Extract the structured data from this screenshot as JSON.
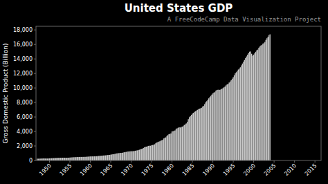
{
  "chart_data": {
    "type": "bar",
    "title": "United States GDP",
    "subtitle": "A FreeCodeCamp Data Visualization Project",
    "y_label": "Gross Domestic Product (Billion)",
    "color": "#c8c8c8",
    "grid": false,
    "x": [
      1947,
      1947.25,
      1947.5,
      1947.75,
      1948,
      1948.25,
      1948.5,
      1948.75,
      1949,
      1949.25,
      1949.5,
      1949.75,
      1950,
      1950.25,
      1950.5,
      1950.75,
      1951,
      1951.25,
      1951.5,
      1951.75,
      1952,
      1952.25,
      1952.5,
      1952.75,
      1953,
      1953.25,
      1953.5,
      1953.75,
      1954,
      1954.25,
      1954.5,
      1954.75,
      1955,
      1955.25,
      1955.5,
      1955.75,
      1956,
      1956.25,
      1956.5,
      1956.75,
      1957,
      1957.25,
      1957.5,
      1957.75,
      1958,
      1958.25,
      1958.5,
      1958.75,
      1959,
      1959.25,
      1959.5,
      1959.75,
      1960,
      1960.25,
      1960.5,
      1960.75,
      1961,
      1961.25,
      1961.5,
      1961.75,
      1962,
      1962.25,
      1962.5,
      1962.75,
      1963,
      1963.25,
      1963.5,
      1963.75,
      1964,
      1964.25,
      1964.5,
      1964.75,
      1965,
      1965.25,
      1965.5,
      1965.75,
      1966,
      1966.25,
      1966.5,
      1966.75,
      1967,
      1967.25,
      1967.5,
      1967.75,
      1968,
      1968.25,
      1968.5,
      1968.75,
      1969,
      1969.25,
      1969.5,
      1969.75,
      1970,
      1970.25,
      1970.5,
      1970.75,
      1971,
      1971.25,
      1971.5,
      1971.75,
      1972,
      1972.25,
      1972.5,
      1972.75,
      1973,
      1973.25,
      1973.5,
      1973.75,
      1974,
      1974.25,
      1974.5,
      1974.75,
      1975,
      1975.25,
      1975.5,
      1975.75,
      1976,
      1976.25,
      1976.5,
      1976.75,
      1977,
      1977.25,
      1977.5,
      1977.75,
      1978,
      1978.25,
      1978.5,
      1978.75,
      1979,
      1979.25,
      1979.5,
      1979.75,
      1980,
      1980.25,
      1980.5,
      1980.75,
      1981,
      1981.25,
      1981.5,
      1981.75,
      1982,
      1982.25,
      1982.5,
      1982.75,
      1983,
      1983.25,
      1983.5,
      1983.75,
      1984,
      1984.25,
      1984.5,
      1984.75,
      1985,
      1985.25,
      1985.5,
      1985.75,
      1986,
      1986.25,
      1986.5,
      1986.75,
      1987,
      1987.25,
      1987.5,
      1987.75,
      1988,
      1988.25,
      1988.5,
      1988.75,
      1989,
      1989.25,
      1989.5,
      1989.75,
      1990,
      1990.25,
      1990.5,
      1990.75,
      1991,
      1991.25,
      1991.5,
      1991.75,
      1992,
      1992.25,
      1992.5,
      1992.75,
      1993,
      1993.25,
      1993.5,
      1993.75,
      1994,
      1994.25,
      1994.5,
      1994.75,
      1995,
      1995.25,
      1995.5,
      1995.75,
      1996,
      1996.25,
      1996.5,
      1996.75,
      1997,
      1997.25,
      1997.5,
      1997.75,
      1998,
      1998.25,
      1998.5,
      1998.75,
      1999,
      1999.25,
      1999.5,
      1999.75,
      2000,
      2000.25,
      2000.5,
      2000.75,
      2001,
      2001.25,
      2001.5,
      2001.75,
      2002,
      2002.25,
      2002.5,
      2002.75,
      2003,
      2003.25,
      2003.5,
      2003.75,
      2004
    ],
    "values": [
      243.1,
      246.3,
      250.1,
      260.3,
      266.2,
      272.9,
      279.5,
      280.7,
      272.8,
      275.7,
      271.0,
      280.4,
      289.5,
      300.2,
      310.9,
      316.9,
      322.6,
      335.3,
      341.5,
      348.1,
      360.0,
      362.8,
      368.0,
      371.5,
      375.4,
      381.1,
      384.2,
      380.6,
      371.4,
      376.3,
      383.5,
      385.8,
      401.0,
      417.0,
      426.6,
      440.0,
      447.4,
      453.6,
      459.2,
      467.8,
      475.3,
      482.0,
      488.0,
      489.6,
      487.7,
      493.5,
      496.0,
      497.3,
      509.6,
      524.6,
      530.7,
      549.1,
      557.6,
      563.1,
      563.8,
      566.5,
      574.3,
      581.5,
      589.2,
      596.5,
      623.5,
      634.9,
      648.4,
      659.0,
      673.7,
      687.8,
      696.3,
      709.2,
      727.3,
      745.4,
      762.7,
      773.2,
      800.3,
      830.7,
      857.3,
      870.4,
      901.8,
      948.1,
      978.4,
      992.5,
      1017.0,
      1029.1,
      1040.8,
      1049.7,
      1082.8,
      1127.1,
      1151.8,
      1176.8,
      1215.3,
      1239.5,
      1246.2,
      1266.8,
      1271.3,
      1279.0,
      1286.2,
      1305.0,
      1340.1,
      1371.0,
      1393.7,
      1426.5,
      1481.8,
      1545.3,
      1588.1,
      1629.5,
      1720.3,
      1823.5,
      1881.1,
      1906.0,
      1959.3,
      2013.8,
      2033.6,
      2034.0,
      2097.5,
      2134.0,
      2162.5,
      2237.8,
      2361.9,
      2474.5,
      2523.0,
      2594.7,
      2640.0,
      2727.3,
      2784.1,
      2849.3,
      3038.6,
      3127.2,
      3192.8,
      3364.5,
      3516.3,
      3625.6,
      3671.8,
      3737.0,
      4000.2,
      4033.3,
      4085.0,
      4148.0,
      4347.5,
      4434.1,
      4509.4,
      4587.3,
      4545.6,
      4613.4,
      4653.3,
      4741.7,
      4895.5,
      4991.5,
      5113.7,
      5326.4,
      5694.3,
      5974.6,
      6112.0,
      6298.2,
      6465.0,
      6569.0,
      6700.6,
      6786.4,
      6888.9,
      6987.5,
      7079.6,
      7145.3,
      7191.3,
      7272.0,
      7432.9,
      7520.0,
      7765.0,
      8006.3,
      8171.4,
      8345.3,
      8561.7,
      8729.8,
      8908.0,
      9075.5,
      9239.9,
      9356.1,
      9426.3,
      9617.3,
      9730.2,
      9749.2,
      9761.6,
      9725.2,
      9820.9,
      9890.2,
      9985.0,
      10112.4,
      10197.4,
      10379.8,
      10487.1,
      10575.1,
      10747.0,
      10897.3,
      11081.3,
      11274.3,
      11491.3,
      11749.0,
      12016.3,
      12170.7,
      12368.0,
      12543.5,
      12677.2,
      12849.0,
      13118.6,
      13367.6,
      13609.8,
      13858.9,
      14109.3,
      14346.3,
      14581.4,
      14803.8,
      14999.4,
      15026.7,
      14712.8,
      14448.9,
      14594.0,
      14769.9,
      14990.4,
      15175.4,
      15287.0,
      15522.7,
      15703.0,
      15840.7,
      15929.1,
      16097.3,
      16173.4,
      16351.2,
      16627.5,
      16857.6,
      17035.9,
      17295.7,
      17392.7
    ],
    "xlim": [
      1946.7,
      2016.5
    ],
    "xticks": [
      1950,
      1955,
      1960,
      1965,
      1970,
      1975,
      1980,
      1985,
      1990,
      1995,
      2000,
      2005,
      2010,
      2015
    ],
    "ylim": [
      0,
      18500
    ],
    "yticks": [
      0,
      {
        "value": 2000,
        "label": "2,000"
      },
      {
        "value": 4000,
        "label": "4,000"
      },
      {
        "value": 6000,
        "label": "6,000"
      },
      {
        "value": 8000,
        "label": "8,000"
      },
      {
        "value": 10000,
        "label": "10,000"
      },
      {
        "value": 12000,
        "label": "12,000"
      },
      {
        "value": 14000,
        "label": "14,000"
      },
      {
        "value": 16000,
        "label": "16,000"
      },
      {
        "value": 18000,
        "label": "18,000"
      }
    ]
  }
}
